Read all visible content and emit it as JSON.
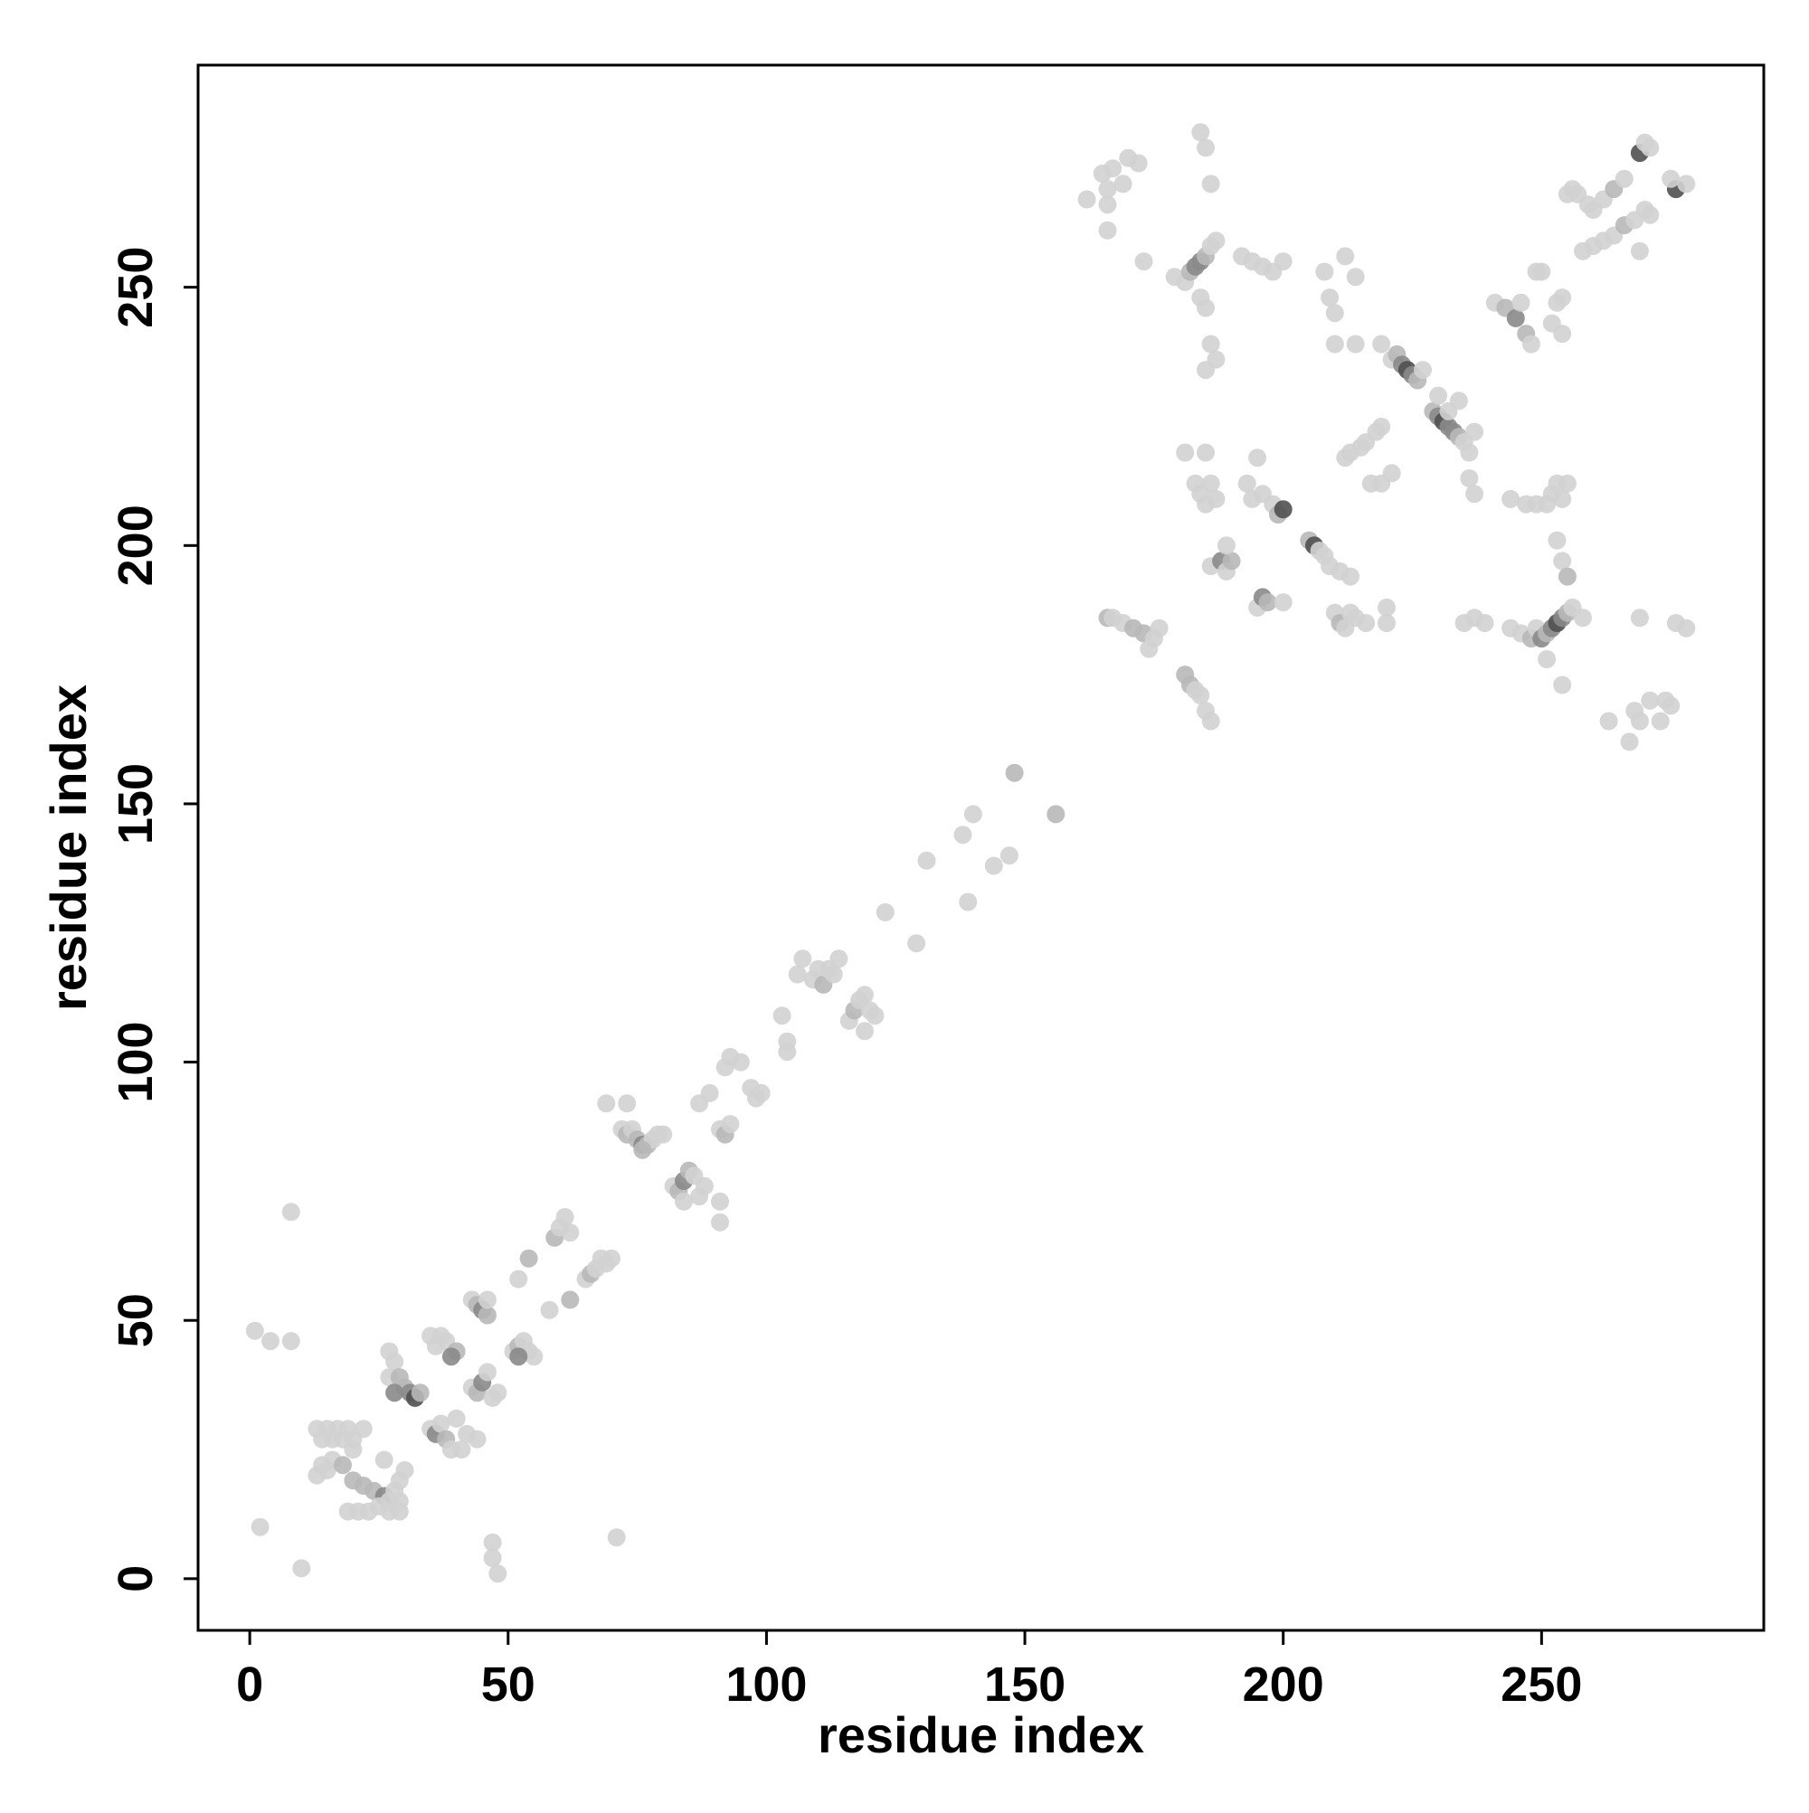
{
  "chart_data": {
    "type": "scatter",
    "title": "",
    "xlabel": "residue index",
    "ylabel": "residue index",
    "xlim": [
      -10,
      293
    ],
    "ylim": [
      -10,
      293
    ],
    "xticks": [
      0,
      50,
      100,
      150,
      200,
      250
    ],
    "yticks": [
      0,
      50,
      100,
      150,
      200,
      250
    ],
    "grid": false,
    "legend": "none",
    "point_colors": [
      "#d2d2d2",
      "#b8b8b8",
      "#8a8a8a",
      "#505050"
    ],
    "points": [
      [
        1,
        48,
        0
      ],
      [
        4,
        46,
        0
      ],
      [
        8,
        46,
        0
      ],
      [
        2,
        10,
        0
      ],
      [
        10,
        2,
        0
      ],
      [
        8,
        71,
        0
      ],
      [
        48,
        1,
        0
      ],
      [
        47,
        4,
        0
      ],
      [
        47,
        7,
        0
      ],
      [
        71,
        8,
        0
      ],
      [
        13,
        29,
        0
      ],
      [
        15,
        29,
        0
      ],
      [
        17,
        29,
        0
      ],
      [
        19,
        29,
        0
      ],
      [
        14,
        27,
        0
      ],
      [
        16,
        27,
        0
      ],
      [
        18,
        27,
        0
      ],
      [
        20,
        27,
        0
      ],
      [
        22,
        29,
        0
      ],
      [
        20,
        25,
        0
      ],
      [
        13,
        20,
        0
      ],
      [
        14,
        22,
        0
      ],
      [
        15,
        21,
        0
      ],
      [
        16,
        23,
        0
      ],
      [
        18,
        22,
        1
      ],
      [
        20,
        19,
        1
      ],
      [
        22,
        18,
        1
      ],
      [
        24,
        17,
        1
      ],
      [
        26,
        16,
        2
      ],
      [
        19,
        13,
        0
      ],
      [
        21,
        13,
        0
      ],
      [
        23,
        13,
        0
      ],
      [
        25,
        14,
        0
      ],
      [
        27,
        13,
        0
      ],
      [
        29,
        13,
        0
      ],
      [
        27,
        15,
        0
      ],
      [
        29,
        15,
        0
      ],
      [
        28,
        17,
        0
      ],
      [
        29,
        19,
        0
      ],
      [
        30,
        21,
        0
      ],
      [
        26,
        23,
        0
      ],
      [
        27,
        44,
        0
      ],
      [
        28,
        42,
        0
      ],
      [
        27,
        39,
        0
      ],
      [
        29,
        39,
        1
      ],
      [
        30,
        37,
        1
      ],
      [
        31,
        36,
        2
      ],
      [
        32,
        35,
        3
      ],
      [
        33,
        36,
        1
      ],
      [
        28,
        36,
        2
      ],
      [
        35,
        47,
        0
      ],
      [
        37,
        47,
        0
      ],
      [
        36,
        45,
        0
      ],
      [
        38,
        46,
        0
      ],
      [
        40,
        44,
        1
      ],
      [
        39,
        43,
        2
      ],
      [
        35,
        29,
        0
      ],
      [
        36,
        28,
        2
      ],
      [
        37,
        30,
        0
      ],
      [
        38,
        27,
        1
      ],
      [
        39,
        25,
        0
      ],
      [
        41,
        25,
        0
      ],
      [
        42,
        28,
        0
      ],
      [
        40,
        31,
        0
      ],
      [
        44,
        27,
        0
      ],
      [
        43,
        54,
        0
      ],
      [
        44,
        53,
        1
      ],
      [
        45,
        52,
        2
      ],
      [
        46,
        51,
        1
      ],
      [
        46,
        54,
        0
      ],
      [
        43,
        37,
        0
      ],
      [
        44,
        36,
        1
      ],
      [
        45,
        38,
        2
      ],
      [
        46,
        40,
        0
      ],
      [
        47,
        35,
        0
      ],
      [
        48,
        36,
        0
      ],
      [
        51,
        44,
        0
      ],
      [
        52,
        45,
        1
      ],
      [
        53,
        46,
        0
      ],
      [
        54,
        44,
        0
      ],
      [
        55,
        43,
        0
      ],
      [
        52,
        43,
        2
      ],
      [
        52,
        58,
        0
      ],
      [
        54,
        62,
        1
      ],
      [
        58,
        52,
        0
      ],
      [
        59,
        66,
        1
      ],
      [
        60,
        68,
        0
      ],
      [
        61,
        70,
        0
      ],
      [
        62,
        54,
        1
      ],
      [
        62,
        67,
        0
      ],
      [
        65,
        58,
        0
      ],
      [
        66,
        59,
        1
      ],
      [
        67,
        60,
        0
      ],
      [
        68,
        62,
        0
      ],
      [
        69,
        61,
        0
      ],
      [
        70,
        62,
        0
      ],
      [
        69,
        92,
        0
      ],
      [
        73,
        92,
        0
      ],
      [
        72,
        87,
        0
      ],
      [
        73,
        86,
        1
      ],
      [
        74,
        87,
        0
      ],
      [
        75,
        85,
        1
      ],
      [
        76,
        84,
        2
      ],
      [
        77,
        84,
        1
      ],
      [
        78,
        85,
        0
      ],
      [
        79,
        86,
        0
      ],
      [
        80,
        86,
        0
      ],
      [
        76,
        83,
        1
      ],
      [
        82,
        76,
        0
      ],
      [
        83,
        75,
        1
      ],
      [
        84,
        77,
        2
      ],
      [
        85,
        79,
        1
      ],
      [
        86,
        78,
        0
      ],
      [
        84,
        73,
        0
      ],
      [
        87,
        74,
        0
      ],
      [
        88,
        76,
        0
      ],
      [
        87,
        92,
        0
      ],
      [
        89,
        94,
        0
      ],
      [
        91,
        87,
        0
      ],
      [
        92,
        86,
        1
      ],
      [
        93,
        88,
        0
      ],
      [
        91,
        73,
        0
      ],
      [
        91,
        69,
        0
      ],
      [
        92,
        99,
        0
      ],
      [
        93,
        101,
        0
      ],
      [
        95,
        100,
        0
      ],
      [
        97,
        95,
        0
      ],
      [
        98,
        93,
        0
      ],
      [
        99,
        94,
        0
      ],
      [
        103,
        109,
        0
      ],
      [
        104,
        102,
        0
      ],
      [
        104,
        104,
        0
      ],
      [
        106,
        117,
        0
      ],
      [
        107,
        120,
        0
      ],
      [
        109,
        116,
        0
      ],
      [
        110,
        118,
        0
      ],
      [
        111,
        115,
        1
      ],
      [
        112,
        118,
        0
      ],
      [
        113,
        117,
        0
      ],
      [
        114,
        120,
        0
      ],
      [
        116,
        108,
        0
      ],
      [
        117,
        110,
        1
      ],
      [
        118,
        112,
        0
      ],
      [
        119,
        113,
        0
      ],
      [
        120,
        110,
        0
      ],
      [
        119,
        106,
        0
      ],
      [
        121,
        109,
        0
      ],
      [
        123,
        129,
        0
      ],
      [
        129,
        123,
        0
      ],
      [
        131,
        139,
        0
      ],
      [
        138,
        144,
        0
      ],
      [
        139,
        131,
        0
      ],
      [
        140,
        148,
        0
      ],
      [
        144,
        138,
        0
      ],
      [
        147,
        140,
        0
      ],
      [
        148,
        156,
        1
      ],
      [
        156,
        148,
        1
      ],
      [
        162,
        267,
        0
      ],
      [
        165,
        272,
        0
      ],
      [
        166,
        269,
        0
      ],
      [
        167,
        273,
        0
      ],
      [
        169,
        270,
        0
      ],
      [
        170,
        275,
        0
      ],
      [
        172,
        274,
        0
      ],
      [
        166,
        261,
        0
      ],
      [
        166,
        266,
        0
      ],
      [
        173,
        255,
        0
      ],
      [
        166,
        186,
        1
      ],
      [
        167,
        186,
        0
      ],
      [
        169,
        185,
        0
      ],
      [
        171,
        184,
        1
      ],
      [
        173,
        183,
        1
      ],
      [
        175,
        182,
        0
      ],
      [
        174,
        180,
        0
      ],
      [
        176,
        184,
        0
      ],
      [
        179,
        252,
        0
      ],
      [
        181,
        251,
        0
      ],
      [
        182,
        253,
        1
      ],
      [
        183,
        254,
        2
      ],
      [
        184,
        255,
        2
      ],
      [
        185,
        256,
        1
      ],
      [
        186,
        258,
        0
      ],
      [
        187,
        259,
        0
      ],
      [
        184,
        248,
        0
      ],
      [
        185,
        246,
        0
      ],
      [
        186,
        239,
        0
      ],
      [
        187,
        236,
        0
      ],
      [
        185,
        234,
        0
      ],
      [
        184,
        280,
        0
      ],
      [
        185,
        277,
        0
      ],
      [
        186,
        270,
        0
      ],
      [
        181,
        175,
        1
      ],
      [
        182,
        173,
        1
      ],
      [
        183,
        172,
        0
      ],
      [
        184,
        171,
        0
      ],
      [
        185,
        168,
        0
      ],
      [
        186,
        166,
        0
      ],
      [
        181,
        218,
        0
      ],
      [
        183,
        212,
        0
      ],
      [
        184,
        210,
        0
      ],
      [
        185,
        208,
        0
      ],
      [
        186,
        212,
        0
      ],
      [
        187,
        209,
        0
      ],
      [
        185,
        218,
        0
      ],
      [
        186,
        196,
        0
      ],
      [
        188,
        197,
        2
      ],
      [
        189,
        195,
        0
      ],
      [
        190,
        197,
        1
      ],
      [
        189,
        200,
        0
      ],
      [
        192,
        256,
        0
      ],
      [
        194,
        255,
        0
      ],
      [
        196,
        254,
        0
      ],
      [
        198,
        253,
        0
      ],
      [
        200,
        255,
        0
      ],
      [
        193,
        212,
        0
      ],
      [
        194,
        209,
        0
      ],
      [
        195,
        217,
        0
      ],
      [
        196,
        210,
        0
      ],
      [
        198,
        208,
        0
      ],
      [
        199,
        206,
        1
      ],
      [
        200,
        207,
        3
      ],
      [
        195,
        188,
        0
      ],
      [
        196,
        190,
        2
      ],
      [
        197,
        189,
        1
      ],
      [
        200,
        189,
        0
      ],
      [
        205,
        201,
        1
      ],
      [
        206,
        200,
        3
      ],
      [
        207,
        199,
        0
      ],
      [
        208,
        198,
        0
      ],
      [
        209,
        196,
        0
      ],
      [
        211,
        195,
        0
      ],
      [
        213,
        194,
        0
      ],
      [
        208,
        253,
        0
      ],
      [
        209,
        248,
        0
      ],
      [
        210,
        245,
        0
      ],
      [
        212,
        256,
        0
      ],
      [
        214,
        252,
        0
      ],
      [
        210,
        239,
        0
      ],
      [
        214,
        239,
        0
      ],
      [
        210,
        187,
        0
      ],
      [
        211,
        185,
        1
      ],
      [
        212,
        184,
        0
      ],
      [
        213,
        187,
        0
      ],
      [
        214,
        186,
        0
      ],
      [
        216,
        185,
        0
      ],
      [
        220,
        188,
        0
      ],
      [
        220,
        185,
        0
      ],
      [
        212,
        217,
        0
      ],
      [
        213,
        218,
        0
      ],
      [
        215,
        219,
        0
      ],
      [
        216,
        220,
        0
      ],
      [
        218,
        222,
        0
      ],
      [
        219,
        223,
        0
      ],
      [
        217,
        212,
        0
      ],
      [
        219,
        212,
        0
      ],
      [
        221,
        214,
        0
      ],
      [
        219,
        239,
        0
      ],
      [
        221,
        236,
        0
      ],
      [
        222,
        237,
        1
      ],
      [
        223,
        235,
        2
      ],
      [
        224,
        234,
        3
      ],
      [
        225,
        233,
        2
      ],
      [
        226,
        232,
        1
      ],
      [
        227,
        234,
        0
      ],
      [
        229,
        226,
        1
      ],
      [
        230,
        225,
        2
      ],
      [
        231,
        224,
        3
      ],
      [
        232,
        223,
        2
      ],
      [
        233,
        222,
        2
      ],
      [
        234,
        221,
        1
      ],
      [
        235,
        220,
        0
      ],
      [
        236,
        218,
        0
      ],
      [
        230,
        229,
        0
      ],
      [
        232,
        226,
        0
      ],
      [
        234,
        228,
        0
      ],
      [
        237,
        222,
        0
      ],
      [
        236,
        213,
        0
      ],
      [
        237,
        210,
        0
      ],
      [
        235,
        185,
        0
      ],
      [
        237,
        186,
        0
      ],
      [
        239,
        185,
        0
      ],
      [
        241,
        247,
        0
      ],
      [
        243,
        246,
        1
      ],
      [
        245,
        244,
        2
      ],
      [
        246,
        247,
        0
      ],
      [
        247,
        241,
        1
      ],
      [
        248,
        239,
        0
      ],
      [
        249,
        253,
        0
      ],
      [
        250,
        253,
        0
      ],
      [
        244,
        209,
        0
      ],
      [
        247,
        208,
        0
      ],
      [
        249,
        208,
        0
      ],
      [
        244,
        184,
        0
      ],
      [
        246,
        183,
        0
      ],
      [
        248,
        182,
        1
      ],
      [
        249,
        184,
        0
      ],
      [
        252,
        243,
        0
      ],
      [
        253,
        247,
        0
      ],
      [
        254,
        248,
        0
      ],
      [
        254,
        241,
        0
      ],
      [
        251,
        208,
        0
      ],
      [
        252,
        210,
        0
      ],
      [
        253,
        212,
        0
      ],
      [
        254,
        209,
        0
      ],
      [
        255,
        212,
        0
      ],
      [
        250,
        182,
        2
      ],
      [
        251,
        183,
        1
      ],
      [
        252,
        184,
        2
      ],
      [
        253,
        185,
        3
      ],
      [
        254,
        186,
        2
      ],
      [
        255,
        187,
        1
      ],
      [
        256,
        188,
        0
      ],
      [
        258,
        186,
        0
      ],
      [
        251,
        178,
        0
      ],
      [
        254,
        173,
        0
      ],
      [
        253,
        201,
        0
      ],
      [
        254,
        197,
        0
      ],
      [
        255,
        194,
        1
      ],
      [
        255,
        268,
        0
      ],
      [
        256,
        269,
        0
      ],
      [
        257,
        268,
        0
      ],
      [
        259,
        266,
        0
      ],
      [
        260,
        265,
        0
      ],
      [
        262,
        267,
        0
      ],
      [
        264,
        269,
        1
      ],
      [
        266,
        271,
        0
      ],
      [
        258,
        257,
        0
      ],
      [
        260,
        258,
        0
      ],
      [
        262,
        259,
        0
      ],
      [
        264,
        260,
        0
      ],
      [
        266,
        262,
        1
      ],
      [
        268,
        263,
        0
      ],
      [
        270,
        265,
        0
      ],
      [
        271,
        264,
        0
      ],
      [
        263,
        166,
        0
      ],
      [
        267,
        162,
        0
      ],
      [
        268,
        168,
        0
      ],
      [
        269,
        166,
        0
      ],
      [
        271,
        170,
        0
      ],
      [
        273,
        166,
        0
      ],
      [
        274,
        170,
        0
      ],
      [
        275,
        169,
        0
      ],
      [
        269,
        186,
        0
      ],
      [
        276,
        185,
        0
      ],
      [
        278,
        184,
        0
      ],
      [
        269,
        276,
        3
      ],
      [
        270,
        278,
        0
      ],
      [
        271,
        277,
        0
      ],
      [
        276,
        269,
        3
      ],
      [
        278,
        270,
        0
      ],
      [
        275,
        271,
        0
      ],
      [
        269,
        257,
        0
      ]
    ]
  }
}
